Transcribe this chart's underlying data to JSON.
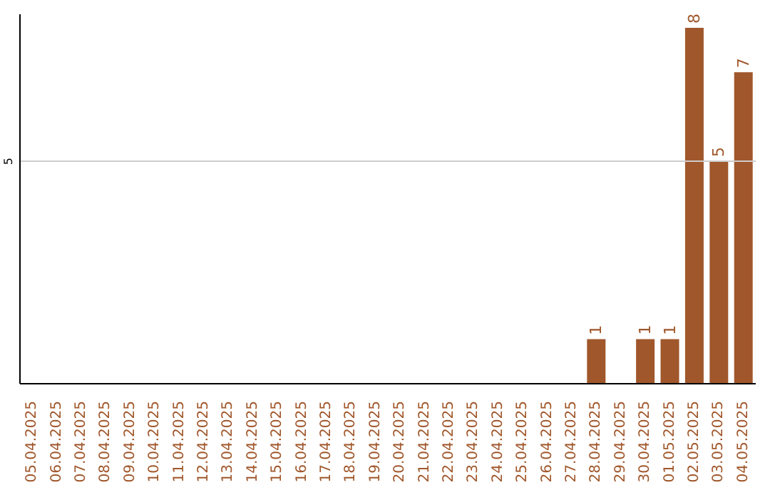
{
  "chart_data": {
    "type": "bar",
    "categories": [
      "05.04.2025",
      "06.04.2025",
      "07.04.2025",
      "08.04.2025",
      "09.04.2025",
      "10.04.2025",
      "11.04.2025",
      "12.04.2025",
      "13.04.2025",
      "14.04.2025",
      "15.04.2025",
      "16.04.2025",
      "17.04.2025",
      "18.04.2025",
      "19.04.2025",
      "20.04.2025",
      "21.04.2025",
      "22.04.2025",
      "23.04.2025",
      "24.04.2025",
      "25.04.2025",
      "26.04.2025",
      "27.04.2025",
      "28.04.2025",
      "29.04.2025",
      "30.04.2025",
      "01.05.2025",
      "02.05.2025",
      "03.05.2025",
      "04.05.2025"
    ],
    "values": [
      null,
      null,
      null,
      null,
      null,
      null,
      null,
      null,
      null,
      null,
      null,
      null,
      null,
      null,
      null,
      null,
      null,
      null,
      null,
      null,
      null,
      null,
      null,
      1,
      null,
      1,
      1,
      8,
      5,
      7
    ],
    "data_labels": true,
    "color": "#a0572b",
    "ref_lines": [
      {
        "axis": "y",
        "value": 5,
        "label": "5",
        "color": "#cccccc"
      }
    ]
  }
}
